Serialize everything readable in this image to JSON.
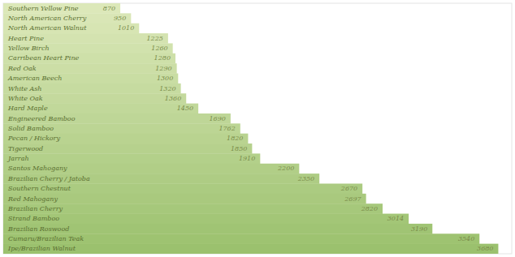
{
  "chart_data": {
    "type": "bar",
    "orientation": "horizontal",
    "categories": [
      "Southern Yellow Pine",
      "North American Cherry",
      "North American Walnut",
      "Heart Pine",
      "Yellow Birch",
      "Carribean Heart Pine",
      "Red Oak",
      "American Beech",
      "White Ash",
      "White Oak",
      "Hard Maple",
      "Engineered Bamboo",
      "Solid Bamboo",
      "Pecan / Hickory",
      "Tigerwood",
      "Jarrah",
      "Santos Mahogany",
      "Brazilian Cherry / Jatoba",
      "Southern Chestnut",
      "Red Mahogany",
      "Brazilian Cherry",
      "Strand Bamboo",
      "Brazilian Roswood",
      "Cumaru/Brazilian Teak",
      "Ipe/Brazilian Walnut"
    ],
    "values": [
      870,
      950,
      1010,
      1225,
      1260,
      1280,
      1290,
      1300,
      1320,
      1360,
      1450,
      1690,
      1762,
      1820,
      1850,
      1910,
      2200,
      2350,
      2670,
      2697,
      2820,
      3014,
      3190,
      3540,
      3680
    ],
    "colors": [
      "#dce8b9",
      "#d9e6b6",
      "#d7e5b3",
      "#d4e3b0",
      "#d1e2ad",
      "#cee0a9",
      "#ccdea6",
      "#c9dda3",
      "#c6dba0",
      "#c4d99d",
      "#c1d89a",
      "#bed697",
      "#bcd594",
      "#b9d390",
      "#b6d18d",
      "#b3d08a",
      "#b1ce87",
      "#aecc84",
      "#abcb81",
      "#a9c97e",
      "#a6c87b",
      "#a3c677",
      "#a0c474",
      "#9ec371",
      "#9bc16e"
    ],
    "xlim": [
      0,
      3780
    ],
    "grid": false,
    "tick_labels": false,
    "data_labels": true
  }
}
